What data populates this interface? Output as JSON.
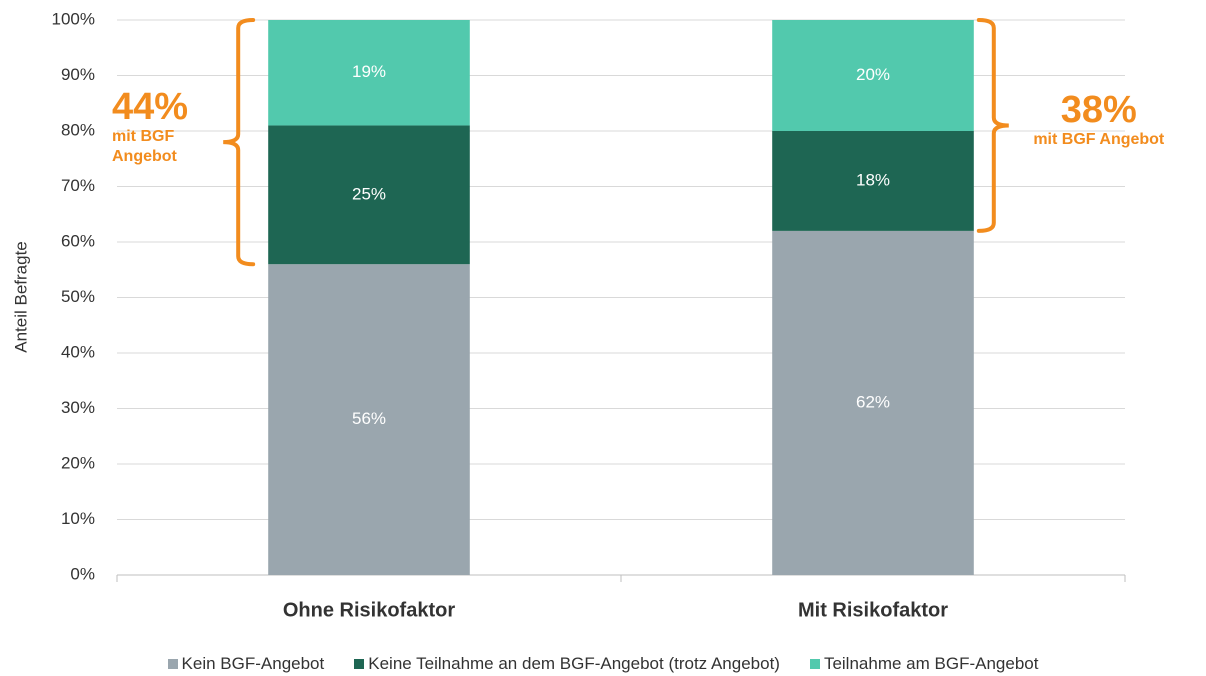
{
  "chart_data": {
    "type": "stacked_bar",
    "y_axis_label": "Anteil Befragte",
    "categories": [
      "Ohne Risikofaktor",
      "Mit Risikofaktor"
    ],
    "series": [
      {
        "name": "Kein BGF-Angebot",
        "color": "#9aa6ae",
        "values": [
          56,
          62
        ],
        "value_labels": [
          "56%",
          "62%"
        ]
      },
      {
        "name": "Keine Teilnahme an dem BGF-Angebot (trotz Angebot)",
        "color": "#1e6653",
        "values": [
          25,
          18
        ],
        "value_labels": [
          "25%",
          "18%"
        ]
      },
      {
        "name": "Teilnahme am BGF-Angebot",
        "color": "#52c9ad",
        "values": [
          19,
          20
        ],
        "value_labels": [
          "19%",
          "20%"
        ]
      }
    ],
    "ylim": [
      0,
      100
    ],
    "yticks": [
      {
        "value": 0,
        "label": "0%"
      },
      {
        "value": 10,
        "label": "10%"
      },
      {
        "value": 20,
        "label": "20%"
      },
      {
        "value": 30,
        "label": "30%"
      },
      {
        "value": 40,
        "label": "40%"
      },
      {
        "value": 50,
        "label": "50%"
      },
      {
        "value": 60,
        "label": "60%"
      },
      {
        "value": 70,
        "label": "70%"
      },
      {
        "value": 80,
        "label": "80%"
      },
      {
        "value": 90,
        "label": "90%"
      },
      {
        "value": 100,
        "label": "100%"
      }
    ],
    "grid": true,
    "annotations": [
      {
        "text": "44%",
        "subtext": "mit BGF Angebot",
        "color": "#f28c1e"
      },
      {
        "text": "38%",
        "subtext": "mit BGF Angebot",
        "color": "#f28c1e"
      }
    ]
  }
}
